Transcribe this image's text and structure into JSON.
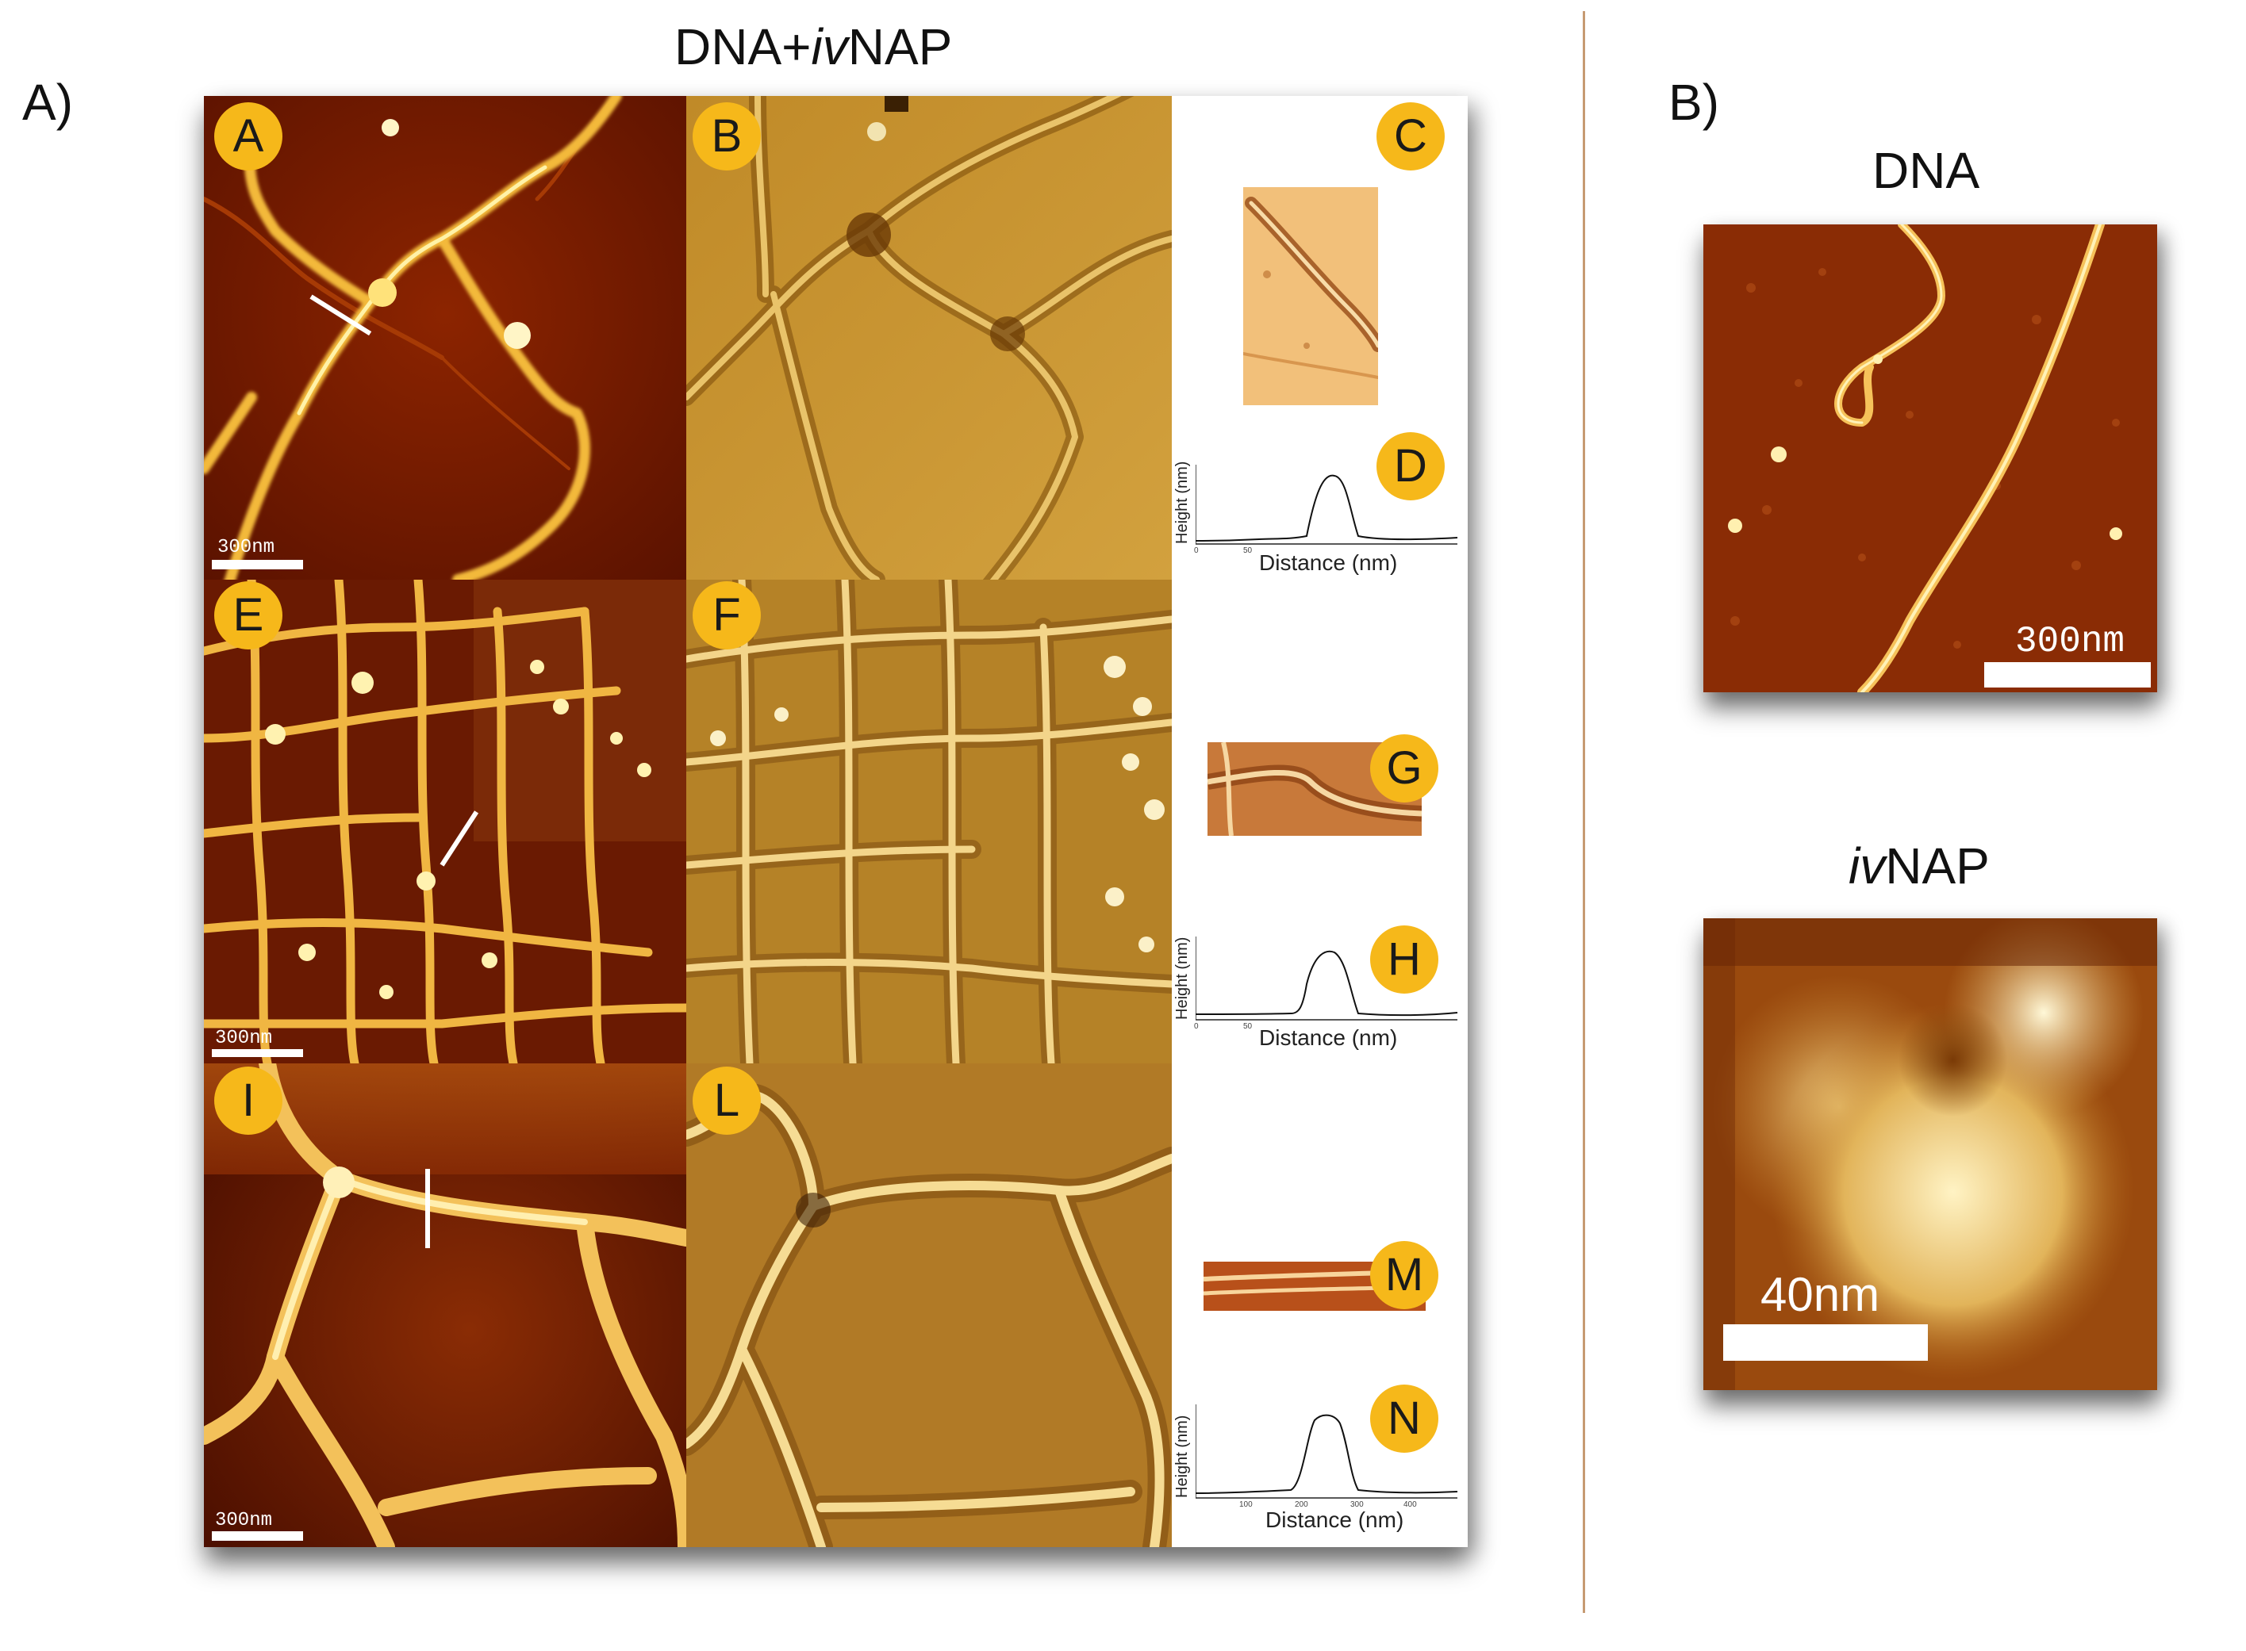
{
  "figure": {
    "part_a_label": "A)",
    "part_b_label": "B)",
    "title_a_prefix": "DNA+",
    "title_a_italic": "iv",
    "title_a_suffix": "NAP",
    "title_b_dna": "DNA",
    "title_b_ivnap_italic": "iv",
    "title_b_ivnap_suffix": "NAP"
  },
  "panels": {
    "A": "A",
    "B": "B",
    "C": "C",
    "D": "D",
    "E": "E",
    "F": "F",
    "G": "G",
    "H": "H",
    "I": "I",
    "L": "L",
    "M": "M",
    "N": "N"
  },
  "scalebars": {
    "A": "300nm",
    "E": "300nm",
    "I": "300nm",
    "B_dna": "300nm",
    "B_ivnap": "40nm"
  },
  "profiles": {
    "D": {
      "xlabel": "Distance (nm)",
      "ylabel": "Height (nm)",
      "xticks": [
        "0",
        "50"
      ]
    },
    "H": {
      "xlabel": "Distance (nm)",
      "ylabel": "Height (nm)",
      "xticks": [
        "0",
        "50"
      ]
    },
    "N": {
      "xlabel": "Distance (nm)",
      "ylabel": "Height (nm)",
      "xticks": [
        "100",
        "200",
        "300",
        "400"
      ]
    }
  },
  "colors": {
    "badge": "#f6b81a",
    "divider": "#c69a72",
    "height_dark": "#5a1200",
    "height_bright": "#ffe27a",
    "phase_mid": "#c69433"
  }
}
